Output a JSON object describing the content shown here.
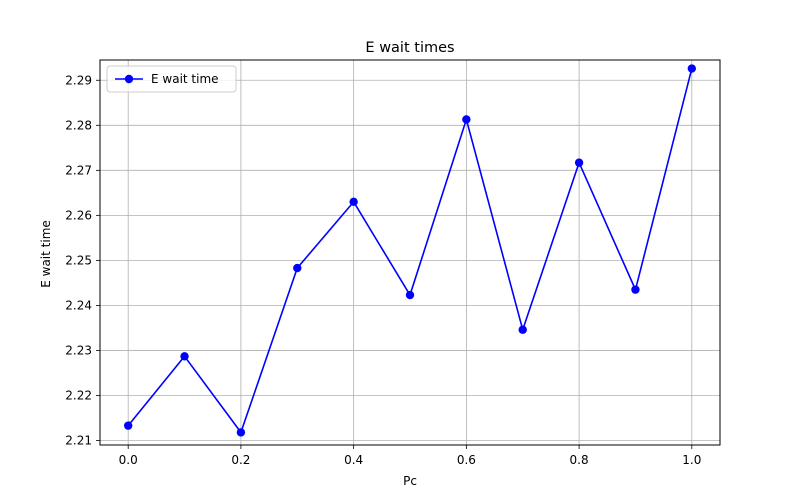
{
  "chart_data": {
    "type": "line",
    "title": "E wait times",
    "xlabel": "Pc",
    "ylabel": "E wait time",
    "xlim": [
      -0.05,
      1.05
    ],
    "ylim": [
      2.209,
      2.2945
    ],
    "xticks": [
      0.0,
      0.2,
      0.4,
      0.6,
      0.8,
      1.0
    ],
    "xtick_labels": [
      "0.0",
      "0.2",
      "0.4",
      "0.6",
      "0.8",
      "1.0"
    ],
    "yticks": [
      2.21,
      2.22,
      2.23,
      2.24,
      2.25,
      2.26,
      2.27,
      2.28,
      2.29
    ],
    "ytick_labels": [
      "2.21",
      "2.22",
      "2.23",
      "2.24",
      "2.25",
      "2.26",
      "2.27",
      "2.28",
      "2.29"
    ],
    "grid": true,
    "legend_position": "top-left",
    "series": [
      {
        "name": "E wait time",
        "color": "#0000ff",
        "marker": "circle",
        "x": [
          0.0,
          0.1,
          0.2,
          0.3,
          0.4,
          0.5,
          0.6,
          0.7,
          0.8,
          0.9,
          1.0
        ],
        "y": [
          2.2133,
          2.2287,
          2.2118,
          2.2483,
          2.263,
          2.2423,
          2.2813,
          2.2346,
          2.2717,
          2.2435,
          2.2926
        ]
      }
    ]
  }
}
